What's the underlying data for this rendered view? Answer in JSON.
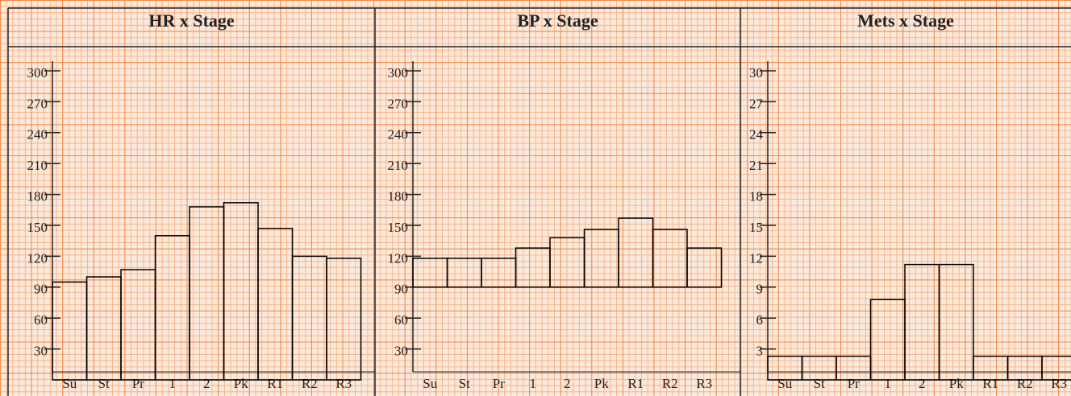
{
  "chart_data": [
    {
      "type": "bar",
      "title": "HR x Stage",
      "categories": [
        "Su",
        "St",
        "Pr",
        "1",
        "2",
        "Pk",
        "R1",
        "R2",
        "R3"
      ],
      "values": [
        95,
        100,
        107,
        140,
        168,
        172,
        147,
        120,
        118
      ],
      "ylim": [
        0,
        300
      ],
      "yticks": [
        30,
        60,
        90,
        120,
        150,
        180,
        210,
        240,
        270,
        300
      ],
      "color": "#000000"
    },
    {
      "type": "floating-bar",
      "title": "BP x Stage",
      "categories": [
        "Su",
        "St",
        "Pr",
        "1",
        "2",
        "Pk",
        "R1",
        "R2",
        "R3"
      ],
      "high": [
        118,
        118,
        118,
        128,
        138,
        146,
        157,
        146,
        128
      ],
      "low": [
        90,
        90,
        90,
        90,
        90,
        90,
        90,
        90,
        90
      ],
      "ylim": [
        0,
        300
      ],
      "yticks": [
        30,
        60,
        90,
        120,
        150,
        180,
        210,
        240,
        270,
        300
      ],
      "color": "#000000"
    },
    {
      "type": "bar",
      "title": "Mets x Stage",
      "categories": [
        "Su",
        "St",
        "Pr",
        "1",
        "2",
        "Pk",
        "R1",
        "R2",
        "R3"
      ],
      "values": [
        2.3,
        2.3,
        2.3,
        7.8,
        11.2,
        11.2,
        2.3,
        2.3,
        2.3
      ],
      "ylim": [
        0,
        30
      ],
      "yticks": [
        3,
        6,
        9,
        12,
        15,
        18,
        21,
        24,
        27,
        30
      ],
      "color": "#000000"
    }
  ]
}
